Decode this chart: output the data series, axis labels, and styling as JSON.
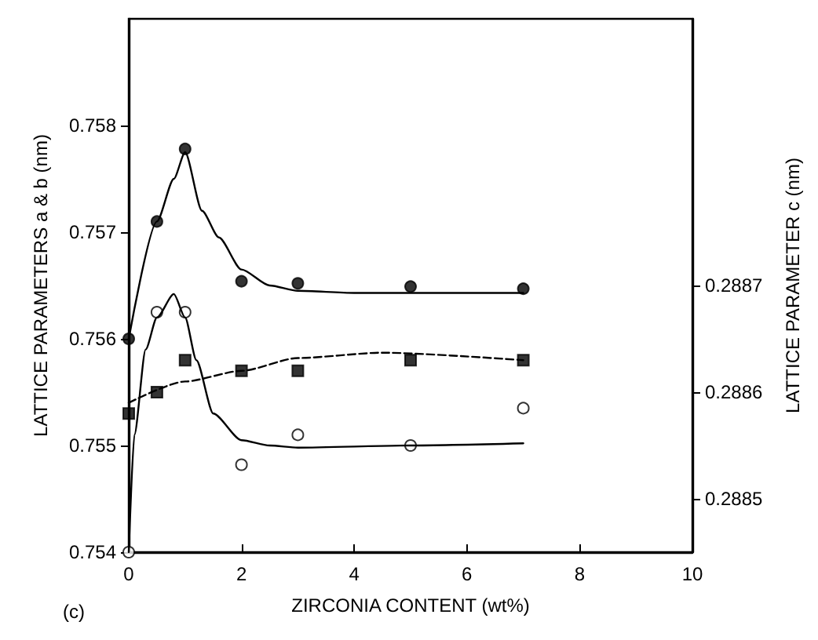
{
  "chart_data": {
    "type": "scatter",
    "xlabel": "ZIRCONIA CONTENT (wt%)",
    "ylabel": "LATTICE PARAMETERS a & b (nm)",
    "y2label": "LATTICE PARAMETER c (nm)",
    "annotations": [
      "(c)"
    ],
    "xlim": [
      0,
      10
    ],
    "xticks": [
      0,
      2,
      4,
      6,
      8,
      10
    ],
    "ylim": [
      0.754,
      0.759
    ],
    "yticks": [
      0.754,
      0.755,
      0.756,
      0.757,
      0.758
    ],
    "y2lim": [
      0.28845,
      0.28895
    ],
    "y2ticks": [
      0.2885,
      0.2886,
      0.2887
    ],
    "grid": false,
    "series": [
      {
        "marker": "circle",
        "color": "#000000",
        "x": [
          0,
          0.5,
          1,
          2,
          3,
          5,
          7
        ],
        "values": [
          0.756,
          0.7571,
          0.75778,
          0.75654,
          0.75652,
          0.75649,
          0.75647
        ]
      },
      {
        "marker": "circle",
        "color": "#ffffff",
        "x": [
          0,
          0.5,
          1,
          2,
          3,
          5,
          7
        ],
        "values": [
          0.754,
          0.75625,
          0.75625,
          0.75482,
          0.7551,
          0.755,
          0.75535
        ]
      },
      {
        "marker": "square",
        "color": "#000000",
        "axis": "y2",
        "x": [
          0,
          0.5,
          1,
          2,
          3,
          5,
          7
        ],
        "values": [
          0.28858,
          0.2886,
          0.28863,
          0.28862,
          0.28862,
          0.28863,
          0.28863
        ]
      },
      {
        "type": "line",
        "marker": "none",
        "line_style": "solid",
        "color": "#000000",
        "x": [
          0,
          0.5,
          0.8,
          1,
          1.3,
          1.6,
          2,
          2.5,
          3,
          4,
          7
        ],
        "values": [
          0.756,
          0.7571,
          0.7575,
          0.75775,
          0.7572,
          0.75695,
          0.75665,
          0.7565,
          0.75645,
          0.75643,
          0.75643
        ]
      },
      {
        "type": "line",
        "marker": "none",
        "line_style": "solid",
        "color": "#000000",
        "x": [
          0,
          0.1,
          0.3,
          0.5,
          0.8,
          1,
          1.2,
          1.5,
          2,
          2.5,
          3,
          5,
          7
        ],
        "values": [
          0.754,
          0.7551,
          0.7559,
          0.7562,
          0.75642,
          0.7562,
          0.7558,
          0.7553,
          0.75505,
          0.755,
          0.75498,
          0.755,
          0.75502
        ]
      },
      {
        "type": "line",
        "marker": "none",
        "line_style": "dashed",
        "color": "#000000",
        "axis": "y2",
        "x": [
          0,
          1,
          2,
          3,
          4.5,
          7
        ],
        "values": [
          0.28859,
          0.28861,
          0.28862,
          0.288632,
          0.288637,
          0.28863
        ]
      }
    ]
  }
}
